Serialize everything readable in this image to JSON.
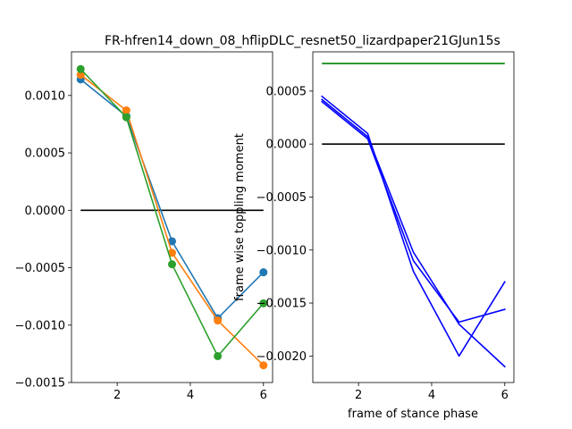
{
  "chart_data": [
    {
      "type": "line",
      "title": "",
      "xlabel": "",
      "ylabel": "",
      "xlim": [
        0.75,
        6.25
      ],
      "ylim": [
        -0.0015,
        0.00138
      ],
      "xticks": [
        2,
        4,
        6
      ],
      "xtick_labels": [
        "2",
        "4",
        "6"
      ],
      "yticks": [
        -0.0015,
        -0.001,
        -0.0005,
        0.0,
        0.0005,
        0.001
      ],
      "ytick_labels": [
        "−0.0015",
        "−0.0010",
        "−0.0005",
        "0.0000",
        "0.0005",
        "0.0010"
      ],
      "x": [
        1.0,
        2.25,
        3.5,
        4.75,
        6.0
      ],
      "series": [
        {
          "color": "#1f77b4",
          "marker": "circle",
          "values": [
            0.00114,
            0.00082,
            -0.00027,
            -0.00094,
            -0.00054
          ]
        },
        {
          "color": "#ff7f0e",
          "marker": "circle",
          "values": [
            0.00118,
            0.00087,
            -0.00037,
            -0.00096,
            -0.00135
          ]
        },
        {
          "color": "#2ca02c",
          "marker": "circle",
          "values": [
            0.00123,
            0.00081,
            -0.00047,
            -0.00127,
            -0.00081
          ]
        }
      ],
      "reference_line": {
        "color": "#000000",
        "x": [
          1.0,
          6.0
        ],
        "y": 0.0
      }
    },
    {
      "type": "line",
      "title": "FR-hfren14_down_08_hflipDLC_resnet50_lizardpaper21GJun15s",
      "xlabel": "frame of stance phase",
      "ylabel": "frame wise toppling moment",
      "xlim": [
        0.75,
        6.25
      ],
      "ylim": [
        -0.00225,
        0.00087
      ],
      "xticks": [
        2,
        4,
        6
      ],
      "xtick_labels": [
        "2",
        "4",
        "6"
      ],
      "yticks": [
        -0.002,
        -0.0015,
        -0.001,
        -0.0005,
        0.0,
        0.0005
      ],
      "ytick_labels": [
        "−0.0020",
        "−0.0015",
        "−0.0010",
        "−0.0005",
        "0.0000",
        "0.0005"
      ],
      "x": [
        1.0,
        2.25,
        3.5,
        4.75,
        6.0
      ],
      "series": [
        {
          "color": "#0000ff",
          "values": [
            0.00045,
            0.0001,
            -0.0012,
            -0.002,
            -0.0013
          ]
        },
        {
          "color": "#0000ff",
          "values": [
            0.00042,
            7e-05,
            -0.00102,
            -0.0017,
            -0.0021
          ]
        },
        {
          "color": "#0000ff",
          "values": [
            0.0004,
            5e-05,
            -0.0011,
            -0.00168,
            -0.00156
          ]
        }
      ],
      "reference_lines": [
        {
          "color": "#008000",
          "x": [
            1.0,
            6.0
          ],
          "y": 0.00076
        },
        {
          "color": "#000000",
          "x": [
            1.0,
            6.0
          ],
          "y": 0.0
        }
      ]
    }
  ]
}
